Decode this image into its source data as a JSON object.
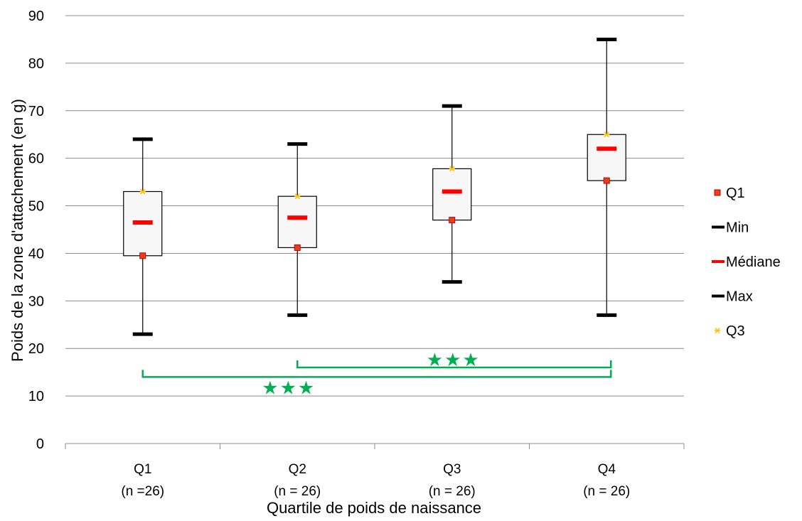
{
  "chart_data": {
    "type": "box",
    "xlabel": "Quartile de poids de naissance",
    "ylabel": "Poids de la zone d'attachement (en g)",
    "ylim": [
      0,
      90
    ],
    "yticks": [
      0,
      10,
      20,
      30,
      40,
      50,
      60,
      70,
      80,
      90
    ],
    "grid": true,
    "legend_position": "right",
    "categories": [
      {
        "name": "Q1",
        "n": "(n =26)"
      },
      {
        "name": "Q2",
        "n": "(n = 26)"
      },
      {
        "name": "Q3",
        "n": "(n = 26)"
      },
      {
        "name": "Q4",
        "n": "(n = 26)"
      }
    ],
    "series": [
      {
        "name": "Q1",
        "marker": "square",
        "color": "#e8401c",
        "values": [
          39.5,
          41.2,
          47.0,
          55.3
        ]
      },
      {
        "name": "Min",
        "marker": "dash",
        "color": "#000000",
        "values": [
          23,
          27,
          34,
          27
        ]
      },
      {
        "name": "Médiane",
        "marker": "dash",
        "color": "#ff0000",
        "values": [
          46.5,
          47.5,
          53,
          62
        ]
      },
      {
        "name": "Max",
        "marker": "dash",
        "color": "#000000",
        "values": [
          64,
          63,
          71,
          85
        ]
      },
      {
        "name": "Q3",
        "marker": "asterisk",
        "color": "#ffc000",
        "values": [
          53,
          52,
          57.8,
          65
        ]
      }
    ],
    "significance": [
      {
        "from": "Q2",
        "to": "Q4",
        "y": 16,
        "label": "★★★",
        "color": "#00b050"
      },
      {
        "from": "Q1",
        "to": "Q4",
        "y": 14,
        "label": "★★★",
        "color": "#00b050"
      }
    ]
  }
}
